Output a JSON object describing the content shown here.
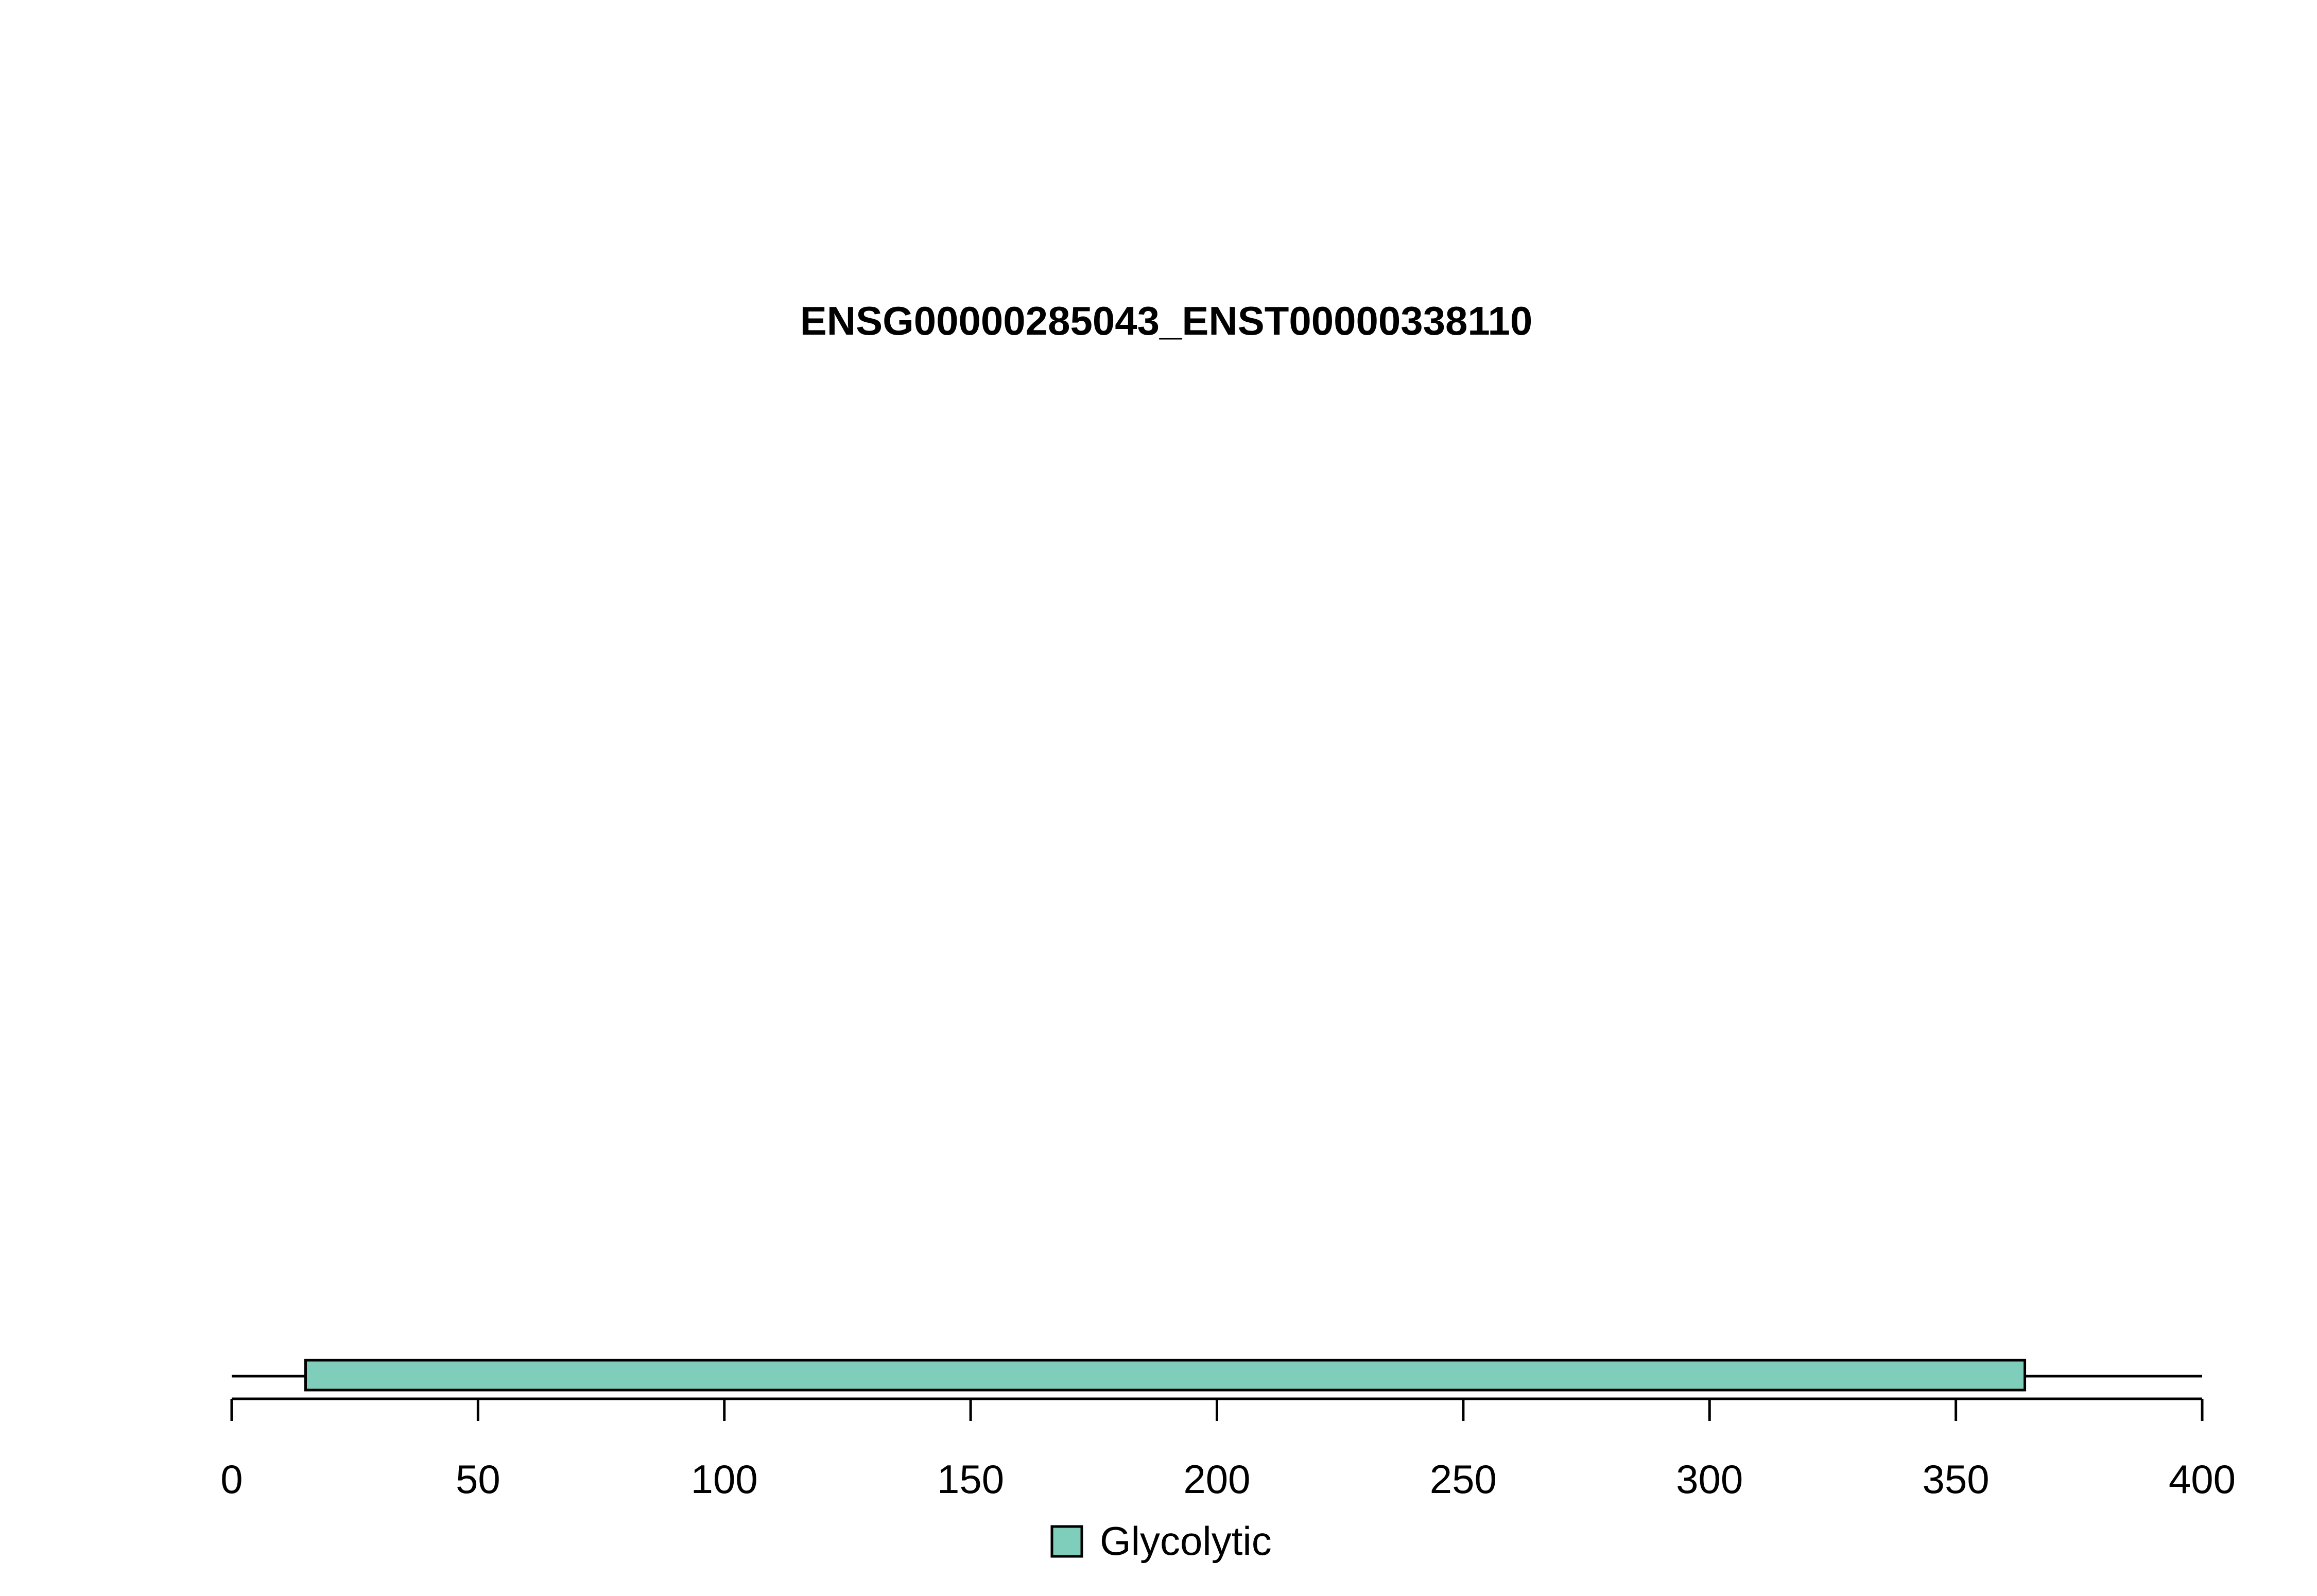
{
  "chart_data": {
    "type": "domain-track",
    "title": "ENSG00000285043_ENST00000338110",
    "xlim": [
      0,
      400
    ],
    "xticks": [
      0,
      50,
      100,
      150,
      200,
      250,
      300,
      350,
      400
    ],
    "tick_labels": [
      "0",
      "50",
      "100",
      "150",
      "200",
      "250",
      "300",
      "350",
      "400"
    ],
    "backbone": {
      "start": 0,
      "end": 400
    },
    "domains": [
      {
        "name": "Glycolytic",
        "start": 15,
        "end": 364,
        "color": "#7fcdbb"
      }
    ],
    "legend": [
      {
        "label": "Glycolytic",
        "color": "#7fcdbb"
      }
    ],
    "legend_position": "bottom-center"
  }
}
